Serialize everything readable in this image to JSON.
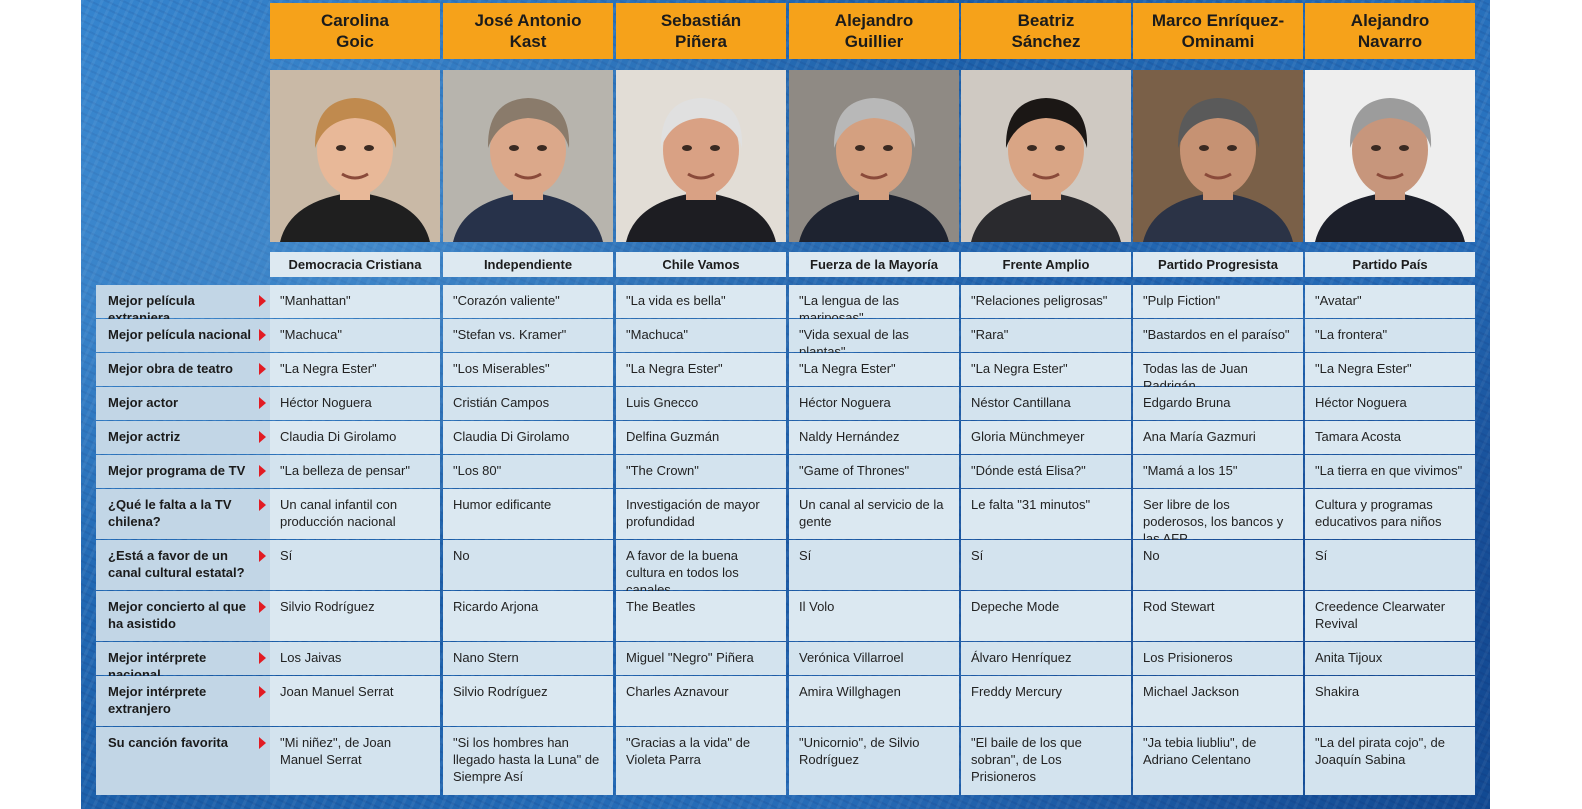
{
  "candidates": [
    {
      "first": "Carolina",
      "last": "Goic",
      "party": "Democracia Cristiana"
    },
    {
      "first": "José Antonio",
      "last": "Kast",
      "party": "Independiente"
    },
    {
      "first": "Sebastián",
      "last": "Piñera",
      "party": "Chile Vamos"
    },
    {
      "first": "Alejandro",
      "last": "Guillier",
      "party": "Fuerza de la Mayoría"
    },
    {
      "first": "Beatriz",
      "last": "Sánchez",
      "party": "Frente Amplio"
    },
    {
      "first": "Marco Enríquez-",
      "last": "Ominami",
      "party": "Partido Progresista"
    },
    {
      "first": "Alejandro",
      "last": "Navarro",
      "party": "Partido País"
    }
  ],
  "rows": [
    {
      "label": "Mejor película extranjera",
      "values": [
        "\"Manhattan\"",
        "\"Corazón valiente\"",
        "\"La vida es bella\"",
        "\"La lengua de las mariposas\"",
        "\"Relaciones peligrosas\"",
        "\"Pulp Fiction\"",
        "\"Avatar\""
      ]
    },
    {
      "label": "Mejor película nacional",
      "values": [
        "\"Machuca\"",
        "\"Stefan vs. Kramer\"",
        "\"Machuca\"",
        "\"Vida sexual de las plantas\"",
        "\"Rara\"",
        "\"Bastardos en el paraíso\"",
        "\"La frontera\""
      ]
    },
    {
      "label": "Mejor obra de teatro",
      "values": [
        "\"La Negra Ester\"",
        "\"Los Miserables\"",
        "\"La Negra Ester\"",
        "\"La Negra Ester\"",
        "\"La Negra Ester\"",
        "Todas las de Juan Radrigán",
        "\"La Negra Ester\""
      ]
    },
    {
      "label": "Mejor actor",
      "values": [
        "Héctor Noguera",
        "Cristián Campos",
        "Luis Gnecco",
        "Héctor Noguera",
        "Néstor Cantillana",
        "Edgardo Bruna",
        "Héctor Noguera"
      ]
    },
    {
      "label": "Mejor actriz",
      "values": [
        "Claudia Di Girolamo",
        "Claudia Di Girolamo",
        "Delfina Guzmán",
        "Naldy Hernández",
        "Gloria Münchmeyer",
        "Ana María Gazmuri",
        "Tamara Acosta"
      ]
    },
    {
      "label": "Mejor programa de TV",
      "values": [
        "\"La belleza de pensar\"",
        "\"Los 80\"",
        "\"The Crown\"",
        "\"Game of Thrones\"",
        "\"Dónde está Elisa?\"",
        "\"Mamá a los 15\"",
        "\"La tierra en que vivimos\""
      ]
    },
    {
      "label": "¿Qué le falta a la TV chilena?",
      "values": [
        "Un canal infantil con producción nacional",
        "Humor edificante",
        "Investigación de mayor profundidad",
        "Un canal al servicio de la gente",
        "Le falta \"31 minutos\"",
        "Ser libre de los poderosos, los bancos y las AFP",
        "Cultura y programas educativos para niños"
      ]
    },
    {
      "label": "¿Está a favor de un canal cultural estatal?",
      "values": [
        "Sí",
        "No",
        "A favor de la buena cultura en todos los canales",
        "Sí",
        "Sí",
        "No",
        "Sí"
      ]
    },
    {
      "label": "Mejor concierto al que ha asistido",
      "values": [
        "Silvio Rodríguez",
        "Ricardo Arjona",
        "The Beatles",
        "Il Volo",
        "Depeche Mode",
        "Rod Stewart",
        "Creedence Clearwater Revival"
      ]
    },
    {
      "label": "Mejor intérprete nacional",
      "values": [
        "Los Jaivas",
        "Nano Stern",
        "Miguel \"Negro\" Piñera",
        "Verónica Villarroel",
        "Álvaro Henríquez",
        "Los Prisioneros",
        "Anita Tijoux"
      ]
    },
    {
      "label": "Mejor intérprete extranjero",
      "values": [
        "Joan Manuel Serrat",
        "Silvio Rodríguez",
        "Charles Aznavour",
        "Amira Willghagen",
        "Freddy Mercury",
        "Michael Jackson",
        "Shakira"
      ]
    },
    {
      "label": "Su canción favorita",
      "values": [
        "\"Mi niñez\", de Joan Manuel Serrat",
        "\"Si los hombres han llegado hasta la Luna\" de Siempre Así",
        "\"Gracias a la vida\" de Violeta Parra",
        "\"Unicornio\", de Silvio Rodríguez",
        "\"El baile de los que sobran\", de Los Prisioneros",
        "\"Ja tebia liubliu\", de Adriano Celentano",
        "\"La del pirata cojo\", de Joaquín Sabina"
      ]
    }
  ],
  "palette": {
    "header": "#f6a21a",
    "arrow": "#e21b23",
    "cell": "#dbe8f1",
    "label": "#c2d6e6"
  },
  "photos": [
    {
      "bg": "#c9b9a6",
      "hair": "#c08a4e",
      "skin": "#e8b898",
      "clothes": "#1f1f1f"
    },
    {
      "bg": "#b7b4ad",
      "hair": "#8a7b6b",
      "skin": "#dba88a",
      "clothes": "#27324a"
    },
    {
      "bg": "#e2ddd6",
      "hair": "#e0e0e0",
      "skin": "#d9a184",
      "clothes": "#1d1d22"
    },
    {
      "bg": "#8f8a84",
      "hair": "#b8b8b8",
      "skin": "#d4a080",
      "clothes": "#1e2330"
    },
    {
      "bg": "#cfc9c2",
      "hair": "#1b1715",
      "skin": "#d9a585",
      "clothes": "#2a2a2e"
    },
    {
      "bg": "#7a6048",
      "hair": "#5a5a5a",
      "skin": "#c69273",
      "clothes": "#2b3346"
    },
    {
      "bg": "#eeeeee",
      "hair": "#9c9c9c",
      "skin": "#c7967c",
      "clothes": "#1c1f2a"
    }
  ]
}
